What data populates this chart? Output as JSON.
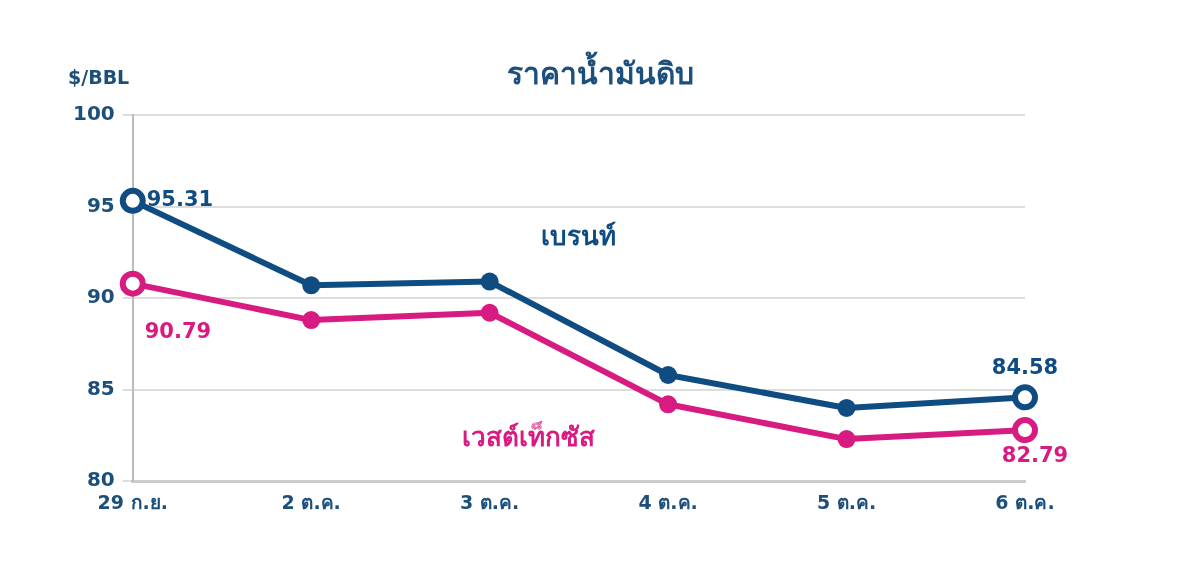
{
  "chart_data": {
    "type": "line",
    "title": "ราคาน้ำมันดิบ",
    "ylabel": "$/BBL",
    "categories": [
      "29 ก.ย.",
      "2 ต.ค.",
      "3 ต.ค.",
      "4 ต.ค.",
      "5 ต.ค.",
      "6 ต.ค."
    ],
    "series": [
      {
        "name": "เบรนท์",
        "color": "#0f4c81",
        "values": [
          95.31,
          90.7,
          90.9,
          85.8,
          84.0,
          84.58
        ],
        "value_labels": [
          "95.31",
          null,
          null,
          null,
          null,
          "84.58"
        ]
      },
      {
        "name": "เวสต์เท็กซัส",
        "color": "#d81b80",
        "values": [
          90.79,
          88.8,
          89.2,
          84.2,
          82.3,
          82.79
        ],
        "value_labels": [
          "90.79",
          null,
          null,
          null,
          null,
          "82.79"
        ]
      }
    ],
    "ylim": [
      80,
      100
    ],
    "yticks": [
      80,
      85,
      90,
      95,
      100
    ],
    "grid": "y",
    "legend": false,
    "marker": "circle",
    "line_style": "solid"
  }
}
